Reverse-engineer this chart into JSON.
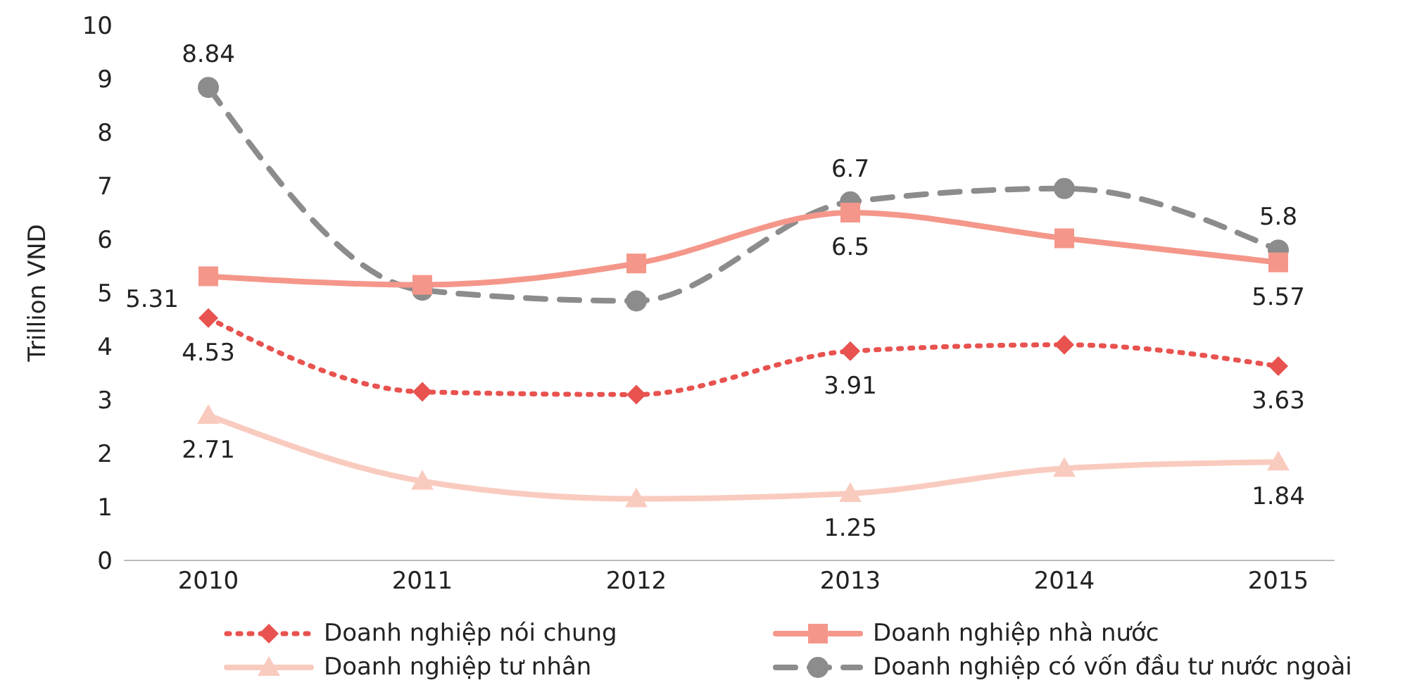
{
  "chart_data": {
    "type": "line",
    "ylabel": "Trillion VND",
    "categories": [
      "2010",
      "2011",
      "2012",
      "2013",
      "2014",
      "2015"
    ],
    "ylim": [
      0,
      10
    ],
    "yticks": [
      0,
      1,
      2,
      3,
      4,
      5,
      6,
      7,
      8,
      9,
      10
    ],
    "grid": false,
    "legend": "bottom",
    "series": [
      {
        "name": "Doanh nghiệp nói chung",
        "color": "#e8524f",
        "marker": "diamond",
        "line_style": "dotted",
        "values": [
          4.53,
          3.15,
          3.1,
          3.91,
          4.03,
          3.63
        ],
        "value_labels": [
          "4.53",
          null,
          null,
          "3.91",
          null,
          "3.63"
        ]
      },
      {
        "name": "Doanh nghiệp nhà nước",
        "color": "#f4978a",
        "marker": "square",
        "line_style": "solid",
        "values": [
          5.31,
          5.15,
          5.55,
          6.5,
          6.02,
          5.57
        ],
        "value_labels": [
          "5.31",
          null,
          null,
          "6.5",
          null,
          "5.57"
        ]
      },
      {
        "name": "Doanh nghiệp tư nhân",
        "color": "#f9cbbf",
        "marker": "triangle",
        "line_style": "solid",
        "values": [
          2.71,
          1.48,
          1.15,
          1.25,
          1.72,
          1.84
        ],
        "value_labels": [
          "2.71",
          null,
          null,
          "1.25",
          null,
          "1.84"
        ]
      },
      {
        "name": "Doanh nghiệp có vốn đầu tư nước ngoài",
        "color": "#8c8c8c",
        "marker": "circle",
        "line_style": "dashed",
        "values": [
          8.84,
          5.05,
          4.85,
          6.7,
          6.95,
          5.8
        ],
        "value_labels": [
          "8.84",
          null,
          null,
          "6.7",
          null,
          "5.8"
        ]
      }
    ]
  }
}
